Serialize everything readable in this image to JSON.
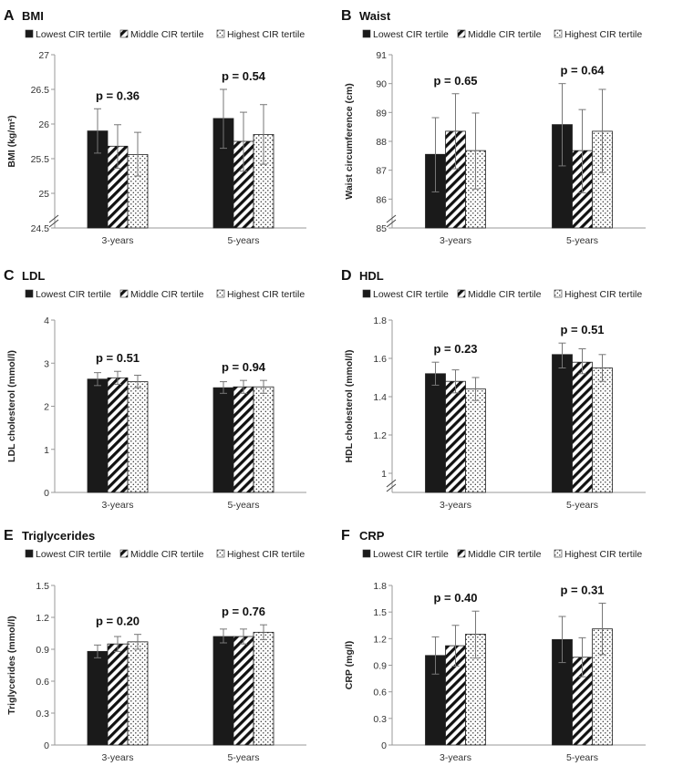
{
  "legend_labels": [
    "Lowest CIR tertile",
    "Middle CIR tertile",
    "Highest CIR tertile"
  ],
  "chart_data": [
    {
      "type": "bar",
      "letter": "A",
      "title": "BMI",
      "ylabel": "BMI (kg/m²)",
      "categories": [
        "3-years",
        "5-years"
      ],
      "ylim": [
        24.5,
        27
      ],
      "yticks": [
        "24.5",
        "25",
        "25.5",
        "26",
        "26.5",
        "27"
      ],
      "axis_break": true,
      "p_values": [
        "p = 0.36",
        "p = 0.54"
      ],
      "series": [
        {
          "name": "Lowest CIR tertile",
          "values": [
            25.9,
            26.08
          ],
          "err_low": [
            25.58,
            25.65
          ],
          "err_high": [
            26.22,
            26.5
          ]
        },
        {
          "name": "Middle CIR tertile",
          "values": [
            25.68,
            25.75
          ],
          "err_low": [
            25.36,
            25.32
          ],
          "err_high": [
            25.99,
            26.17
          ]
        },
        {
          "name": "Highest CIR tertile",
          "values": [
            25.56,
            25.85
          ],
          "err_low": [
            25.25,
            25.42
          ],
          "err_high": [
            25.88,
            26.28
          ]
        }
      ]
    },
    {
      "type": "bar",
      "letter": "B",
      "title": "Waist",
      "ylabel": "Waist circumference (cm)",
      "categories": [
        "3-years",
        "5-years"
      ],
      "ylim": [
        85,
        91
      ],
      "yticks": [
        "85",
        "86",
        "87",
        "88",
        "89",
        "90",
        "91"
      ],
      "axis_break": true,
      "p_values": [
        "p = 0.65",
        "p = 0.64"
      ],
      "series": [
        {
          "name": "Lowest CIR tertile",
          "values": [
            87.55,
            88.58
          ],
          "err_low": [
            86.25,
            87.15
          ],
          "err_high": [
            88.82,
            90.0
          ]
        },
        {
          "name": "Middle CIR tertile",
          "values": [
            88.35,
            87.68
          ],
          "err_low": [
            87.05,
            86.22
          ],
          "err_high": [
            89.65,
            89.1
          ]
        },
        {
          "name": "Highest CIR tertile",
          "values": [
            87.68,
            88.35
          ],
          "err_low": [
            86.35,
            86.92
          ],
          "err_high": [
            88.98,
            89.8
          ]
        }
      ]
    },
    {
      "type": "bar",
      "letter": "C",
      "title": "LDL",
      "ylabel": "LDL cholesterol (mmol/l)",
      "categories": [
        "3-years",
        "5-years"
      ],
      "ylim": [
        0,
        4
      ],
      "yticks": [
        "0",
        "1",
        "2",
        "3",
        "4"
      ],
      "axis_break": false,
      "p_values": [
        "p = 0.51",
        "p = 0.94"
      ],
      "series": [
        {
          "name": "Lowest CIR tertile",
          "values": [
            2.63,
            2.43
          ],
          "err_low": [
            2.48,
            2.3
          ],
          "err_high": [
            2.78,
            2.57
          ]
        },
        {
          "name": "Middle CIR tertile",
          "values": [
            2.66,
            2.45
          ],
          "err_low": [
            2.51,
            2.3
          ],
          "err_high": [
            2.81,
            2.6
          ]
        },
        {
          "name": "Highest CIR tertile",
          "values": [
            2.57,
            2.45
          ],
          "err_low": [
            2.43,
            2.3
          ],
          "err_high": [
            2.72,
            2.6
          ]
        }
      ]
    },
    {
      "type": "bar",
      "letter": "D",
      "title": "HDL",
      "ylabel": "HDL cholesterol (mmol/l)",
      "categories": [
        "3-years",
        "5-years"
      ],
      "ylim": [
        0.9,
        1.8
      ],
      "yticks": [
        "1",
        "1.2",
        "1.4",
        "1.6",
        "1.8"
      ],
      "ytick_values": [
        1,
        1.2,
        1.4,
        1.6,
        1.8
      ],
      "axis_break": true,
      "p_values": [
        "p = 0.23",
        "p = 0.51"
      ],
      "series": [
        {
          "name": "Lowest CIR tertile",
          "values": [
            1.52,
            1.62
          ],
          "err_low": [
            1.46,
            1.55
          ],
          "err_high": [
            1.58,
            1.68
          ]
        },
        {
          "name": "Middle CIR tertile",
          "values": [
            1.48,
            1.58
          ],
          "err_low": [
            1.42,
            1.52
          ],
          "err_high": [
            1.54,
            1.65
          ]
        },
        {
          "name": "Highest CIR tertile",
          "values": [
            1.44,
            1.55
          ],
          "err_low": [
            1.38,
            1.48
          ],
          "err_high": [
            1.5,
            1.62
          ]
        }
      ]
    },
    {
      "type": "bar",
      "letter": "E",
      "title": "Triglycerides",
      "ylabel": "Triglycerides (mmol/l)",
      "categories": [
        "3-years",
        "5-years"
      ],
      "ylim": [
        0,
        1.5
      ],
      "yticks": [
        "0",
        "0.3",
        "0.6",
        "0.9",
        "1.2",
        "1.5"
      ],
      "axis_break": false,
      "p_values": [
        "p = 0.20",
        "p = 0.76"
      ],
      "series": [
        {
          "name": "Lowest CIR tertile",
          "values": [
            0.88,
            1.02
          ],
          "err_low": [
            0.82,
            0.96
          ],
          "err_high": [
            0.94,
            1.09
          ]
        },
        {
          "name": "Middle CIR tertile",
          "values": [
            0.95,
            1.02
          ],
          "err_low": [
            0.88,
            0.95
          ],
          "err_high": [
            1.02,
            1.09
          ]
        },
        {
          "name": "Highest CIR tertile",
          "values": [
            0.97,
            1.06
          ],
          "err_low": [
            0.9,
            0.99
          ],
          "err_high": [
            1.04,
            1.13
          ]
        }
      ]
    },
    {
      "type": "bar",
      "letter": "F",
      "title": "CRP",
      "ylabel": "CRP (mg/l)",
      "categories": [
        "3-years",
        "5-years"
      ],
      "ylim": [
        0,
        1.8
      ],
      "yticks": [
        "0",
        "0.3",
        "0.6",
        "0.9",
        "1.2",
        "1.5",
        "1.8"
      ],
      "axis_break": false,
      "p_values": [
        "p = 0.40",
        "p = 0.31"
      ],
      "series": [
        {
          "name": "Lowest CIR tertile",
          "values": [
            1.01,
            1.19
          ],
          "err_low": [
            0.8,
            0.93
          ],
          "err_high": [
            1.22,
            1.45
          ]
        },
        {
          "name": "Middle CIR tertile",
          "values": [
            1.12,
            0.99
          ],
          "err_low": [
            0.89,
            0.77
          ],
          "err_high": [
            1.35,
            1.21
          ]
        },
        {
          "name": "Highest CIR tertile",
          "values": [
            1.25,
            1.31
          ],
          "err_low": [
            0.98,
            1.02
          ],
          "err_high": [
            1.51,
            1.6
          ]
        }
      ]
    }
  ]
}
